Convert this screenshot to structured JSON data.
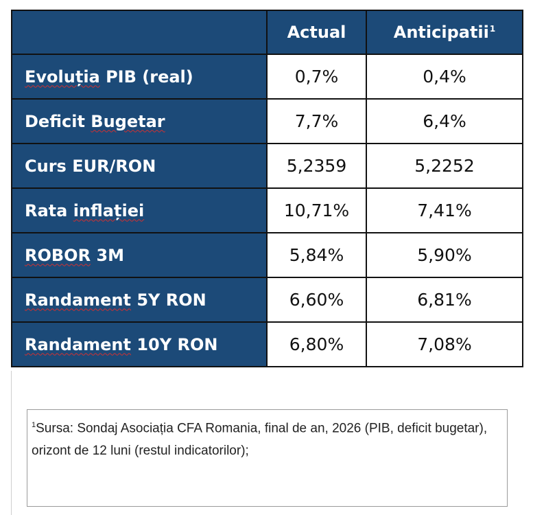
{
  "table": {
    "headers": [
      "",
      "Actual",
      "Anticipatii"
    ],
    "header_footnote": "1",
    "rows": [
      {
        "label": "Evoluția PIB (real)",
        "actual": "0,7%",
        "anticipated": "0,4%"
      },
      {
        "label": "Deficit Bugetar",
        "actual": "7,7%",
        "anticipated": "6,4%"
      },
      {
        "label": "Curs EUR/RON",
        "actual": "5,2359",
        "anticipated": "5,2252"
      },
      {
        "label": "Rata inflației",
        "actual": "10,71%",
        "anticipated": "7,41%"
      },
      {
        "label": "ROBOR 3M",
        "actual": "5,84%",
        "anticipated": "5,90%"
      },
      {
        "label": "Randament 5Y RON",
        "actual": "6,60%",
        "anticipated": "6,81%"
      },
      {
        "label": "Randament 10Y RON",
        "actual": "6,80%",
        "anticipated": "7,08%"
      }
    ],
    "spellcheck_marked": [
      "Evoluția",
      "Bugetar",
      "inflației",
      "ROBOR",
      "Randament"
    ]
  },
  "footnote": {
    "marker": "1",
    "text": "Sursa: Sondaj Asociația CFA Romania, final de an, 2026 (PIB, deficit bugetar), orizont de 12 luni (restul indicatorilor);"
  },
  "colors": {
    "header_fill": "#1c4a78",
    "border": "#111111",
    "spellcheck_underline": "#d23030"
  }
}
